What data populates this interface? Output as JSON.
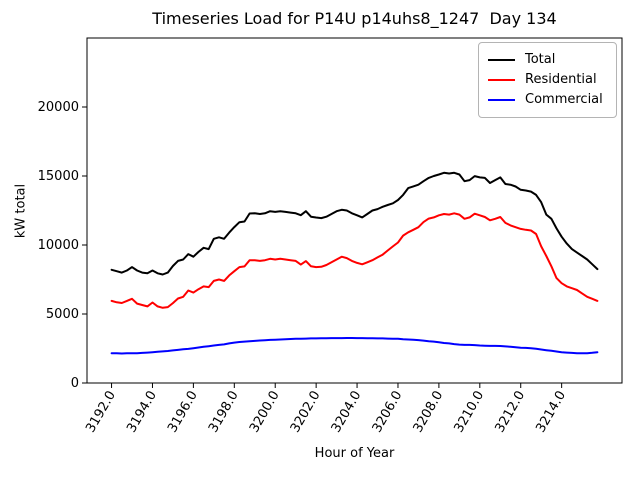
{
  "chart_data": {
    "type": "line",
    "title": "Timeseries Load for P14U p14uhs8_1247  Day 134",
    "xlabel": "Hour of Year",
    "ylabel": "kW total",
    "xlim": [
      3190.8,
      3216.95
    ],
    "ylim": [
      0,
      25000
    ],
    "grid": false,
    "xticks": {
      "values": [
        3192,
        3194,
        3196,
        3198,
        3200,
        3202,
        3204,
        3206,
        3208,
        3210,
        3212,
        3214
      ],
      "labels": [
        "3192.0",
        "3194.0",
        "3196.0",
        "3198.0",
        "3200.0",
        "3202.0",
        "3204.0",
        "3206.0",
        "3208.0",
        "3210.0",
        "3212.0",
        "3214.0"
      ],
      "rotation_deg": 60
    },
    "yticks": {
      "values": [
        0,
        5000,
        10000,
        15000,
        20000
      ],
      "labels": [
        "0",
        "5000",
        "10000",
        "15000",
        "20000"
      ]
    },
    "legend": {
      "position": "upper right",
      "entries": [
        {
          "label": "Total",
          "color": "#000000"
        },
        {
          "label": "Residential",
          "color": "#ff0000"
        },
        {
          "label": "Commercial",
          "color": "#0000ff"
        }
      ]
    },
    "x": [
      3192,
      3192.25,
      3192.5,
      3192.75,
      3193,
      3193.25,
      3193.5,
      3193.75,
      3194,
      3194.25,
      3194.5,
      3194.75,
      3195,
      3195.25,
      3195.5,
      3195.75,
      3196,
      3196.25,
      3196.5,
      3196.75,
      3197,
      3197.25,
      3197.5,
      3197.75,
      3198,
      3198.25,
      3198.5,
      3198.75,
      3199,
      3199.25,
      3199.5,
      3199.75,
      3200,
      3200.25,
      3200.5,
      3200.75,
      3201,
      3201.25,
      3201.5,
      3201.75,
      3202,
      3202.25,
      3202.5,
      3202.75,
      3203,
      3203.25,
      3203.5,
      3203.75,
      3204,
      3204.25,
      3204.5,
      3204.75,
      3205,
      3205.25,
      3205.5,
      3205.75,
      3206,
      3206.25,
      3206.5,
      3206.75,
      3207,
      3207.25,
      3207.5,
      3207.75,
      3208,
      3208.25,
      3208.5,
      3208.75,
      3209,
      3209.25,
      3209.5,
      3209.75,
      3210,
      3210.25,
      3210.5,
      3210.75,
      3211,
      3211.25,
      3211.5,
      3211.75,
      3212,
      3212.25,
      3212.5,
      3212.75,
      3213,
      3213.25,
      3213.5,
      3213.75,
      3214,
      3214.25,
      3214.5,
      3214.75,
      3215,
      3215.25,
      3215.5,
      3215.75
    ],
    "series": [
      {
        "name": "Total",
        "color": "#000000",
        "values": [
          8200,
          8100,
          8000,
          8150,
          8400,
          8150,
          8000,
          7950,
          8150,
          7950,
          7860,
          8000,
          8480,
          8850,
          8950,
          9340,
          9150,
          9500,
          9800,
          9700,
          10450,
          10560,
          10450,
          10900,
          11300,
          11650,
          11700,
          12280,
          12300,
          12250,
          12300,
          12450,
          12400,
          12450,
          12400,
          12350,
          12300,
          12160,
          12450,
          12050,
          11990,
          11950,
          12050,
          12250,
          12450,
          12550,
          12500,
          12300,
          12150,
          12000,
          12250,
          12500,
          12600,
          12770,
          12900,
          13020,
          13260,
          13630,
          14120,
          14250,
          14370,
          14620,
          14860,
          15000,
          15110,
          15230,
          15180,
          15230,
          15110,
          14620,
          14700,
          14990,
          14900,
          14860,
          14490,
          14700,
          14900,
          14420,
          14370,
          14240,
          14000,
          13950,
          13870,
          13630,
          13100,
          12200,
          11900,
          11200,
          10600,
          10100,
          9700,
          9450,
          9200,
          8950,
          8600,
          8250
        ]
      },
      {
        "name": "Residential",
        "color": "#ff0000",
        "values": [
          5950,
          5850,
          5800,
          5950,
          6100,
          5750,
          5650,
          5550,
          5830,
          5550,
          5450,
          5500,
          5790,
          6120,
          6250,
          6700,
          6550,
          6800,
          7000,
          6950,
          7400,
          7500,
          7400,
          7800,
          8100,
          8400,
          8450,
          8900,
          8900,
          8850,
          8900,
          9000,
          8950,
          9000,
          8950,
          8900,
          8850,
          8580,
          8830,
          8460,
          8400,
          8420,
          8550,
          8750,
          8950,
          9150,
          9050,
          8850,
          8700,
          8600,
          8750,
          8900,
          9100,
          9300,
          9600,
          9900,
          10180,
          10680,
          10920,
          11100,
          11290,
          11660,
          11910,
          12000,
          12150,
          12250,
          12200,
          12300,
          12200,
          11900,
          12000,
          12270,
          12150,
          12030,
          11790,
          11900,
          12030,
          11600,
          11420,
          11290,
          11170,
          11100,
          11050,
          10800,
          9900,
          9200,
          8460,
          7600,
          7230,
          7000,
          6870,
          6740,
          6490,
          6250,
          6100,
          5950
        ]
      },
      {
        "name": "Commercial",
        "color": "#0000ff",
        "values": [
          2150,
          2150,
          2140,
          2150,
          2150,
          2160,
          2180,
          2200,
          2230,
          2260,
          2290,
          2320,
          2360,
          2400,
          2440,
          2470,
          2520,
          2570,
          2620,
          2670,
          2720,
          2760,
          2800,
          2870,
          2930,
          2970,
          3000,
          3030,
          3050,
          3080,
          3100,
          3120,
          3140,
          3150,
          3170,
          3190,
          3200,
          3210,
          3220,
          3230,
          3230,
          3240,
          3240,
          3250,
          3250,
          3250,
          3260,
          3260,
          3250,
          3250,
          3240,
          3240,
          3230,
          3230,
          3220,
          3210,
          3200,
          3170,
          3150,
          3130,
          3110,
          3070,
          3030,
          3000,
          2950,
          2900,
          2870,
          2820,
          2780,
          2760,
          2760,
          2750,
          2720,
          2700,
          2690,
          2690,
          2680,
          2650,
          2620,
          2590,
          2560,
          2540,
          2520,
          2480,
          2430,
          2380,
          2330,
          2280,
          2230,
          2200,
          2180,
          2160,
          2150,
          2160,
          2190,
          2230
        ]
      }
    ]
  }
}
